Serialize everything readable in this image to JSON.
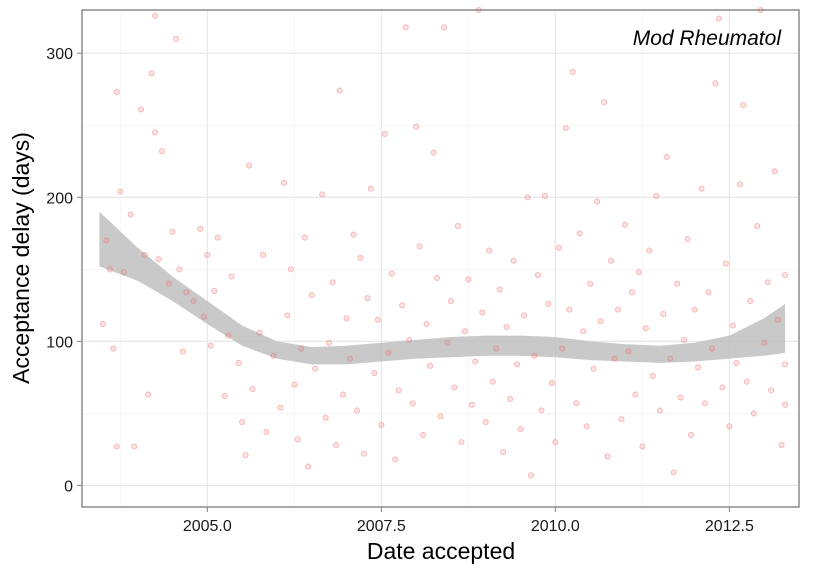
{
  "chart_data": {
    "type": "scatter",
    "title": "",
    "annotation": "Mod Rheumatol",
    "xlabel": "Date accepted",
    "ylabel": "Acceptance delay (days)",
    "xlim": [
      2003.2,
      2013.5
    ],
    "ylim": [
      -15,
      330
    ],
    "x_ticks": [
      2005.0,
      2007.5,
      2010.0,
      2012.5
    ],
    "x_tick_labels": [
      "2005.0",
      "2007.5",
      "2010.0",
      "2012.5"
    ],
    "y_ticks": [
      0,
      100,
      200,
      300
    ],
    "y_tick_labels": [
      "0",
      "100",
      "200",
      "300"
    ],
    "grid": true,
    "point_color": "#f06a6a",
    "band_color": "#bfbfbf",
    "smooth": {
      "x": [
        2003.45,
        2004.0,
        2004.5,
        2005.0,
        2005.5,
        2006.0,
        2006.5,
        2007.0,
        2007.5,
        2008.0,
        2008.5,
        2009.0,
        2009.5,
        2010.0,
        2010.5,
        2011.0,
        2011.5,
        2012.0,
        2012.5,
        2013.0,
        2013.3
      ],
      "lower": [
        152,
        142,
        128,
        112,
        97,
        88,
        84,
        84,
        86,
        88,
        89,
        90,
        90,
        89,
        87,
        86,
        85,
        86,
        88,
        90,
        92
      ],
      "upper": [
        190,
        165,
        145,
        128,
        111,
        100,
        96,
        97,
        99,
        101,
        103,
        104,
        104,
        103,
        100,
        98,
        97,
        99,
        104,
        116,
        126
      ]
    },
    "points": [
      [
        2003.5,
        112
      ],
      [
        2003.55,
        170
      ],
      [
        2003.6,
        150
      ],
      [
        2003.65,
        95
      ],
      [
        2003.7,
        273
      ],
      [
        2003.75,
        204
      ],
      [
        2003.7,
        27
      ],
      [
        2003.8,
        148
      ],
      [
        2003.9,
        188
      ],
      [
        2003.95,
        27
      ],
      [
        2004.05,
        261
      ],
      [
        2004.1,
        160
      ],
      [
        2004.15,
        63
      ],
      [
        2004.2,
        286
      ],
      [
        2004.25,
        245
      ],
      [
        2004.25,
        326
      ],
      [
        2004.3,
        157
      ],
      [
        2004.35,
        232
      ],
      [
        2004.45,
        140
      ],
      [
        2004.5,
        176
      ],
      [
        2004.55,
        310
      ],
      [
        2004.6,
        150
      ],
      [
        2004.65,
        93
      ],
      [
        2004.7,
        134
      ],
      [
        2004.8,
        128
      ],
      [
        2004.9,
        178
      ],
      [
        2004.95,
        117
      ],
      [
        2005.0,
        160
      ],
      [
        2005.05,
        97
      ],
      [
        2005.1,
        135
      ],
      [
        2005.15,
        172
      ],
      [
        2005.25,
        62
      ],
      [
        2005.3,
        104
      ],
      [
        2005.35,
        145
      ],
      [
        2005.45,
        85
      ],
      [
        2005.5,
        44
      ],
      [
        2005.55,
        21
      ],
      [
        2005.6,
        222
      ],
      [
        2005.65,
        67
      ],
      [
        2005.75,
        106
      ],
      [
        2005.8,
        160
      ],
      [
        2005.85,
        37
      ],
      [
        2005.95,
        90
      ],
      [
        2006.05,
        54
      ],
      [
        2006.1,
        210
      ],
      [
        2006.15,
        118
      ],
      [
        2006.2,
        150
      ],
      [
        2006.25,
        70
      ],
      [
        2006.3,
        32
      ],
      [
        2006.35,
        95
      ],
      [
        2006.4,
        172
      ],
      [
        2006.45,
        13
      ],
      [
        2006.5,
        132
      ],
      [
        2006.55,
        81
      ],
      [
        2006.65,
        202
      ],
      [
        2006.7,
        47
      ],
      [
        2006.75,
        99
      ],
      [
        2006.8,
        141
      ],
      [
        2006.85,
        28
      ],
      [
        2006.9,
        274
      ],
      [
        2006.95,
        63
      ],
      [
        2007.0,
        116
      ],
      [
        2007.05,
        88
      ],
      [
        2007.1,
        174
      ],
      [
        2007.15,
        52
      ],
      [
        2007.2,
        158
      ],
      [
        2007.25,
        22
      ],
      [
        2007.3,
        130
      ],
      [
        2007.35,
        206
      ],
      [
        2007.4,
        78
      ],
      [
        2007.45,
        115
      ],
      [
        2007.5,
        42
      ],
      [
        2007.55,
        244
      ],
      [
        2007.6,
        92
      ],
      [
        2007.65,
        147
      ],
      [
        2007.7,
        18
      ],
      [
        2007.75,
        66
      ],
      [
        2007.8,
        125
      ],
      [
        2007.85,
        318
      ],
      [
        2007.9,
        101
      ],
      [
        2007.95,
        57
      ],
      [
        2008.0,
        249
      ],
      [
        2008.05,
        166
      ],
      [
        2008.1,
        35
      ],
      [
        2008.15,
        112
      ],
      [
        2008.2,
        83
      ],
      [
        2008.25,
        231
      ],
      [
        2008.3,
        144
      ],
      [
        2008.35,
        48
      ],
      [
        2008.4,
        318
      ],
      [
        2008.45,
        99
      ],
      [
        2008.5,
        128
      ],
      [
        2008.55,
        68
      ],
      [
        2008.6,
        180
      ],
      [
        2008.65,
        30
      ],
      [
        2008.7,
        107
      ],
      [
        2008.75,
        143
      ],
      [
        2008.8,
        56
      ],
      [
        2008.85,
        86
      ],
      [
        2008.9,
        330
      ],
      [
        2008.95,
        120
      ],
      [
        2009.0,
        44
      ],
      [
        2009.05,
        163
      ],
      [
        2009.1,
        72
      ],
      [
        2009.15,
        95
      ],
      [
        2009.2,
        136
      ],
      [
        2009.25,
        23
      ],
      [
        2009.3,
        110
      ],
      [
        2009.35,
        60
      ],
      [
        2009.4,
        156
      ],
      [
        2009.45,
        84
      ],
      [
        2009.5,
        39
      ],
      [
        2009.55,
        118
      ],
      [
        2009.6,
        200
      ],
      [
        2009.65,
        7
      ],
      [
        2009.7,
        90
      ],
      [
        2009.75,
        146
      ],
      [
        2009.8,
        52
      ],
      [
        2009.85,
        201
      ],
      [
        2009.9,
        126
      ],
      [
        2009.95,
        71
      ],
      [
        2010.0,
        30
      ],
      [
        2010.05,
        165
      ],
      [
        2010.1,
        95
      ],
      [
        2010.15,
        248
      ],
      [
        2010.2,
        122
      ],
      [
        2010.25,
        287
      ],
      [
        2010.3,
        57
      ],
      [
        2010.35,
        175
      ],
      [
        2010.4,
        107
      ],
      [
        2010.45,
        41
      ],
      [
        2010.5,
        140
      ],
      [
        2010.55,
        81
      ],
      [
        2010.6,
        197
      ],
      [
        2010.65,
        114
      ],
      [
        2010.7,
        266
      ],
      [
        2010.75,
        20
      ],
      [
        2010.8,
        156
      ],
      [
        2010.85,
        88
      ],
      [
        2010.9,
        122
      ],
      [
        2010.95,
        46
      ],
      [
        2011.0,
        181
      ],
      [
        2011.05,
        93
      ],
      [
        2011.1,
        134
      ],
      [
        2011.15,
        63
      ],
      [
        2011.2,
        148
      ],
      [
        2011.25,
        27
      ],
      [
        2011.3,
        109
      ],
      [
        2011.35,
        163
      ],
      [
        2011.4,
        76
      ],
      [
        2011.45,
        201
      ],
      [
        2011.5,
        52
      ],
      [
        2011.55,
        119
      ],
      [
        2011.6,
        228
      ],
      [
        2011.65,
        88
      ],
      [
        2011.7,
        9
      ],
      [
        2011.75,
        140
      ],
      [
        2011.8,
        61
      ],
      [
        2011.85,
        101
      ],
      [
        2011.9,
        171
      ],
      [
        2011.95,
        35
      ],
      [
        2012.0,
        122
      ],
      [
        2012.05,
        82
      ],
      [
        2012.1,
        206
      ],
      [
        2012.15,
        57
      ],
      [
        2012.2,
        134
      ],
      [
        2012.25,
        95
      ],
      [
        2012.3,
        279
      ],
      [
        2012.35,
        324
      ],
      [
        2012.4,
        68
      ],
      [
        2012.45,
        154
      ],
      [
        2012.5,
        41
      ],
      [
        2012.55,
        111
      ],
      [
        2012.6,
        85
      ],
      [
        2012.65,
        209
      ],
      [
        2012.7,
        264
      ],
      [
        2012.75,
        72
      ],
      [
        2012.8,
        128
      ],
      [
        2012.85,
        50
      ],
      [
        2012.9,
        180
      ],
      [
        2012.95,
        330
      ],
      [
        2013.0,
        99
      ],
      [
        2013.05,
        141
      ],
      [
        2013.1,
        66
      ],
      [
        2013.15,
        218
      ],
      [
        2013.2,
        115
      ],
      [
        2013.25,
        28
      ],
      [
        2013.3,
        84
      ],
      [
        2013.3,
        146
      ],
      [
        2013.3,
        56
      ]
    ]
  }
}
